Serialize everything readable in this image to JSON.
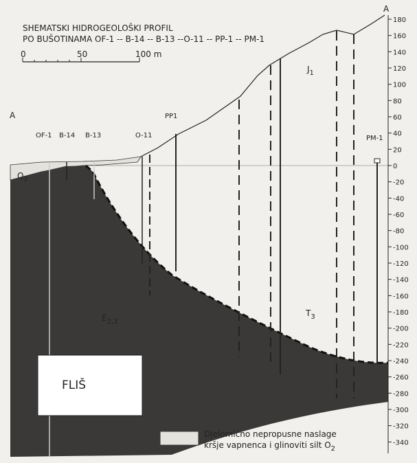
{
  "header": {
    "title_lines": [
      "SHEMATSKI HIDROGEOLOŠKI PROFIL",
      "PO BUŠOTINAMA OF-1 -- B-14 -- B-13 --O-11 -- PP-1 -- PM-1"
    ]
  },
  "scale_bar": {
    "labels": [
      "0",
      "50",
      "100 m"
    ]
  },
  "section_ends": {
    "left": "A",
    "right": "A"
  },
  "wells": [
    {
      "label": "OF-1"
    },
    {
      "label": "B-14"
    },
    {
      "label": "B-13"
    },
    {
      "label": "O-11"
    },
    {
      "label": "PP1"
    },
    {
      "label": "PM-1"
    }
  ],
  "units": {
    "quaternary": {
      "label": "Q",
      "sub": "2"
    },
    "jurassic": {
      "label": "J",
      "sub": "1"
    },
    "eocene": {
      "label": "E",
      "sub": "2,3"
    },
    "triassic": {
      "label": "T",
      "sub": "3"
    },
    "flysch": {
      "label": "FLIŠ"
    }
  },
  "elevation_axis": {
    "ticks": [
      180,
      160,
      140,
      120,
      100,
      80,
      60,
      40,
      20,
      0,
      -20,
      -40,
      -60,
      -80,
      -100,
      -120,
      -140,
      -160,
      -180,
      -200,
      -220,
      -240,
      -260,
      -280,
      -300,
      -320,
      -340
    ]
  },
  "legend": {
    "line1": "Djelomično nepropusne naslage",
    "line2": "kršje vapnenca i glinoviti silt O",
    "line2_sub": "2"
  }
}
